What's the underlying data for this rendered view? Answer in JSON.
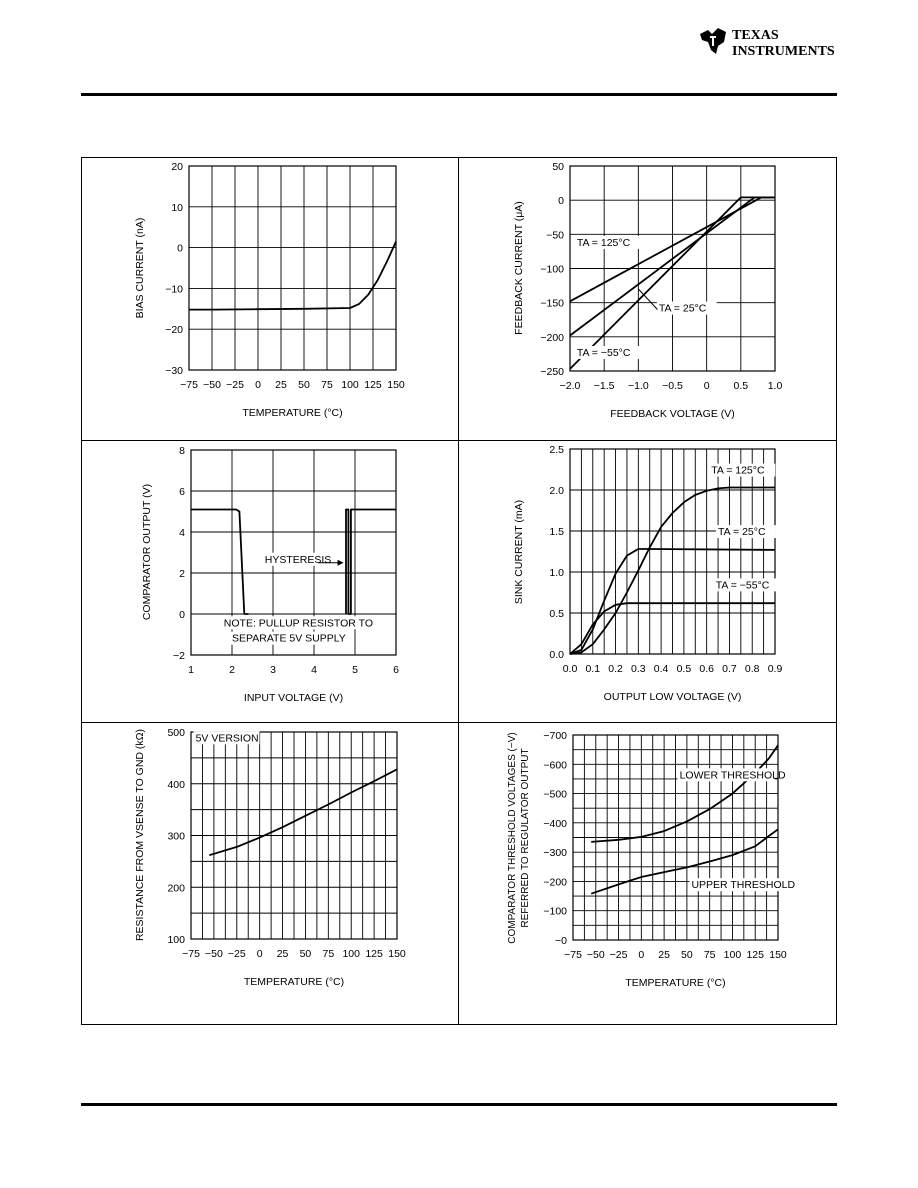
{
  "header": {
    "brand_line1": "TEXAS",
    "brand_line2": "INSTRUMENTS",
    "logo_icon": "ti-logo-icon"
  },
  "chart_data": [
    {
      "type": "line",
      "xlabel": "TEMPERATURE (°C)",
      "ylabel": "BIAS CURRENT (nA)",
      "xlim": [
        -75,
        150
      ],
      "ylim": [
        -30,
        20
      ],
      "xticks": [
        -75,
        -50,
        -25,
        0,
        25,
        50,
        75,
        100,
        125,
        150
      ],
      "xtick_labels": [
        "−75",
        "−50",
        "−25",
        "0",
        "25",
        "50",
        "75",
        "100",
        "125",
        "150"
      ],
      "yticks": [
        -30,
        -20,
        -10,
        0,
        10,
        20
      ],
      "ytick_labels": [
        "−30",
        "−20",
        "−10",
        "0",
        "10",
        "20"
      ],
      "grid": true,
      "series": [
        {
          "x": [
            -75,
            -50,
            0,
            50,
            100,
            110,
            120,
            130,
            140,
            150
          ],
          "y": [
            -15.2,
            -15.2,
            -15.1,
            -15.0,
            -14.8,
            -13.8,
            -11.5,
            -8.0,
            -3.5,
            1.5
          ]
        }
      ],
      "annotations": []
    },
    {
      "type": "line",
      "xlabel": "FEEDBACK VOLTAGE (V)",
      "ylabel": "FEEDBACK CURRENT (μA)",
      "xlim": [
        -2.0,
        1.0
      ],
      "ylim": [
        -250,
        50
      ],
      "xticks": [
        -2.0,
        -1.5,
        -1.0,
        -0.5,
        0,
        0.5,
        1.0
      ],
      "xtick_labels": [
        "−2.0",
        "−1.5",
        "−1.0",
        "−0.5",
        "0",
        "0.5",
        "1.0"
      ],
      "yticks": [
        -250,
        -200,
        -150,
        -100,
        -50,
        0,
        50
      ],
      "ytick_labels": [
        "−250",
        "−200",
        "−150",
        "−100",
        "−50",
        "0",
        "50"
      ],
      "grid": true,
      "series": [
        {
          "name": "TA = 125°C",
          "x": [
            -2.0,
            0.8,
            1.0
          ],
          "y": [
            -148,
            4,
            4
          ]
        },
        {
          "name": "TA = 25°C",
          "x": [
            -2.0,
            0.7,
            1.0
          ],
          "y": [
            -198,
            4,
            4
          ]
        },
        {
          "name": "TA = −55°C",
          "x": [
            -2.0,
            0.5,
            1.0
          ],
          "y": [
            -247,
            4,
            4
          ]
        }
      ],
      "annotations": [
        {
          "text": "TA = 125°C",
          "x": -1.9,
          "y": -67
        },
        {
          "text": "TA = 25°C",
          "x": -0.7,
          "y": -163
        },
        {
          "text": "TA = −55°C",
          "x": -1.9,
          "y": -228
        }
      ]
    },
    {
      "type": "line",
      "xlabel": "INPUT VOLTAGE (V)",
      "ylabel": "COMPARATOR OUTPUT (V)",
      "xlim": [
        1,
        6
      ],
      "ylim": [
        -2,
        8
      ],
      "xticks": [
        1,
        2,
        3,
        4,
        5,
        6
      ],
      "xtick_labels": [
        "1",
        "2",
        "3",
        "4",
        "5",
        "6"
      ],
      "yticks": [
        -2,
        0,
        2,
        4,
        6,
        8
      ],
      "ytick_labels": [
        "−2",
        "0",
        "2",
        "4",
        "6",
        "8"
      ],
      "grid": true,
      "series": [
        {
          "x": [
            1.0,
            2.1,
            2.18,
            2.3,
            2.4
          ],
          "y": [
            5.1,
            5.1,
            5.0,
            0.0,
            0.0
          ]
        },
        {
          "x": [
            4.78,
            4.78,
            4.84,
            4.84,
            4.9,
            4.9,
            6.0
          ],
          "y": [
            0.0,
            5.1,
            5.1,
            0.0,
            0.0,
            5.1,
            5.1
          ]
        }
      ],
      "annotations": [
        {
          "text": "HYSTERESIS",
          "x": 2.8,
          "y": 2.5
        },
        {
          "text": "NOTE: PULLUP RESISTOR TO",
          "x": 1.8,
          "y": -0.6
        },
        {
          "text": "SEPARATE 5V SUPPLY",
          "x": 2.0,
          "y": -1.35
        }
      ]
    },
    {
      "type": "line",
      "xlabel": "OUTPUT LOW VOLTAGE (V)",
      "ylabel": "SINK CURRENT (mA)",
      "xlim": [
        0,
        0.9
      ],
      "ylim": [
        0,
        2.5
      ],
      "xticks": [
        0,
        0.1,
        0.2,
        0.3,
        0.4,
        0.5,
        0.6,
        0.7,
        0.8,
        0.9
      ],
      "xtick_labels": [
        "0.0",
        "0.1",
        "0.2",
        "0.3",
        "0.4",
        "0.5",
        "0.6",
        "0.7",
        "0.8",
        "0.9"
      ],
      "yticks": [
        0,
        0.5,
        1.0,
        1.5,
        2.0,
        2.5
      ],
      "ytick_labels": [
        "0.0",
        "0.5",
        "1.0",
        "1.5",
        "2.0",
        "2.5"
      ],
      "grid": true,
      "series": [
        {
          "name": "TA = 125°C",
          "x": [
            0,
            0.05,
            0.1,
            0.15,
            0.2,
            0.25,
            0.3,
            0.35,
            0.4,
            0.45,
            0.5,
            0.55,
            0.6,
            0.65,
            0.7,
            0.9
          ],
          "y": [
            0,
            0.02,
            0.12,
            0.3,
            0.5,
            0.75,
            1.02,
            1.3,
            1.55,
            1.72,
            1.85,
            1.94,
            1.99,
            2.02,
            2.03,
            2.03
          ]
        },
        {
          "name": "TA = 25°C",
          "x": [
            0,
            0.05,
            0.1,
            0.15,
            0.2,
            0.25,
            0.3,
            0.35,
            0.9
          ],
          "y": [
            0,
            0.05,
            0.3,
            0.65,
            0.98,
            1.2,
            1.28,
            1.28,
            1.27
          ]
        },
        {
          "name": "TA = −55°C",
          "x": [
            0,
            0.05,
            0.1,
            0.15,
            0.2,
            0.25,
            0.9
          ],
          "y": [
            0,
            0.12,
            0.36,
            0.52,
            0.6,
            0.62,
            0.62
          ]
        }
      ],
      "annotations": [
        {
          "text": "TA = 125°C",
          "x": 0.62,
          "y": 2.2
        },
        {
          "text": "TA = 25°C",
          "x": 0.65,
          "y": 1.45
        },
        {
          "text": "TA = −55°C",
          "x": 0.64,
          "y": 0.8
        }
      ]
    },
    {
      "type": "line",
      "xlabel": "TEMPERATURE (°C)",
      "ylabel": "RESISTANCE FROM VSENSE TO GND (kΩ)",
      "xlim": [
        -75,
        150
      ],
      "ylim": [
        100,
        500
      ],
      "xticks": [
        -75,
        -50,
        -25,
        0,
        25,
        50,
        75,
        100,
        125,
        150
      ],
      "xtick_labels": [
        "−75",
        "−50",
        "−25",
        "0",
        "25",
        "50",
        "75",
        "100",
        "125",
        "150"
      ],
      "yticks": [
        100,
        200,
        300,
        400,
        500
      ],
      "ytick_labels": [
        "100",
        "200",
        "300",
        "400",
        "500"
      ],
      "grid": true,
      "series": [
        {
          "x": [
            -55,
            -25,
            0,
            25,
            50,
            75,
            100,
            125,
            150
          ],
          "y": [
            262,
            278,
            296,
            316,
            338,
            360,
            383,
            405,
            428
          ]
        }
      ],
      "annotations": [
        {
          "text": "5V VERSION",
          "x": -70,
          "y": 482
        }
      ]
    },
    {
      "type": "line",
      "xlabel": "TEMPERATURE (°C)",
      "ylabel": "COMPARATOR THRESHOLD VOLTAGES (−V) REFERRED TO REGULATOR OUTPUT",
      "xlim": [
        -75,
        150
      ],
      "ylim": [
        0,
        -700
      ],
      "xticks": [
        -75,
        -50,
        -25,
        0,
        25,
        50,
        75,
        100,
        125,
        150
      ],
      "xtick_labels": [
        "−75",
        "−50",
        "−25",
        "0",
        "25",
        "50",
        "75",
        "100",
        "125",
        "150"
      ],
      "yticks": [
        0,
        -100,
        -200,
        -300,
        -400,
        -500,
        -600,
        -700
      ],
      "ytick_labels": [
        "−0",
        "−100",
        "−200",
        "−300",
        "−400",
        "−500",
        "−600",
        "−700"
      ],
      "grid": true,
      "series": [
        {
          "name": "LOWER THRESHOLD",
          "x": [
            -55,
            -25,
            0,
            25,
            50,
            75,
            100,
            125,
            140,
            150
          ],
          "y": [
            -335,
            -342,
            -352,
            -372,
            -405,
            -447,
            -500,
            -570,
            -620,
            -665
          ]
        },
        {
          "name": "UPPER THRESHOLD",
          "x": [
            -55,
            -25,
            0,
            25,
            50,
            75,
            100,
            125,
            140,
            150
          ],
          "y": [
            -158,
            -190,
            -215,
            -232,
            -248,
            -268,
            -290,
            -320,
            -355,
            -378
          ]
        }
      ],
      "annotations": [
        {
          "text": "LOWER THRESHOLD",
          "x": 42,
          "y": -552
        },
        {
          "text": "UPPER THRESHOLD",
          "x": 55,
          "y": -177
        }
      ]
    }
  ]
}
